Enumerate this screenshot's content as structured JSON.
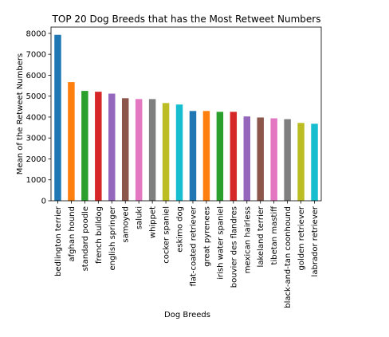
{
  "chart_data": {
    "type": "bar",
    "title": "TOP 20 Dog Breeds that has the Most Retweet Numbers",
    "xlabel": "Dog Breeds",
    "ylabel": "Mean of the Retweet Numbers",
    "ylim": [
      0,
      8300
    ],
    "yticks": [
      0,
      1000,
      2000,
      3000,
      4000,
      5000,
      6000,
      7000,
      8000
    ],
    "grid": false,
    "legend": "none",
    "categories": [
      "bedlington terrier",
      "afghan hound",
      "standard poodle",
      "french bulldog",
      "english springer",
      "samoyed",
      "saluki",
      "whippet",
      "cocker spaniel",
      "eskimo dog",
      "flat-coated retriever",
      "great pyrenees",
      "irish water spaniel",
      "bouvier des flandres",
      "mexican hairless",
      "lakeland terrier",
      "tibetan mastiff",
      "black-and-tan coonhound",
      "golden retriever",
      "labrador retriever"
    ],
    "values": [
      7930,
      5670,
      5250,
      5210,
      5120,
      4900,
      4860,
      4860,
      4670,
      4600,
      4290,
      4290,
      4250,
      4250,
      4030,
      3980,
      3940,
      3900,
      3720,
      3680
    ],
    "colors": [
      "#1f77b4",
      "#ff7f0e",
      "#2ca02c",
      "#d62728",
      "#9467bd",
      "#8c564b",
      "#e377c2",
      "#7f7f7f",
      "#bcbd22",
      "#17becf"
    ]
  }
}
